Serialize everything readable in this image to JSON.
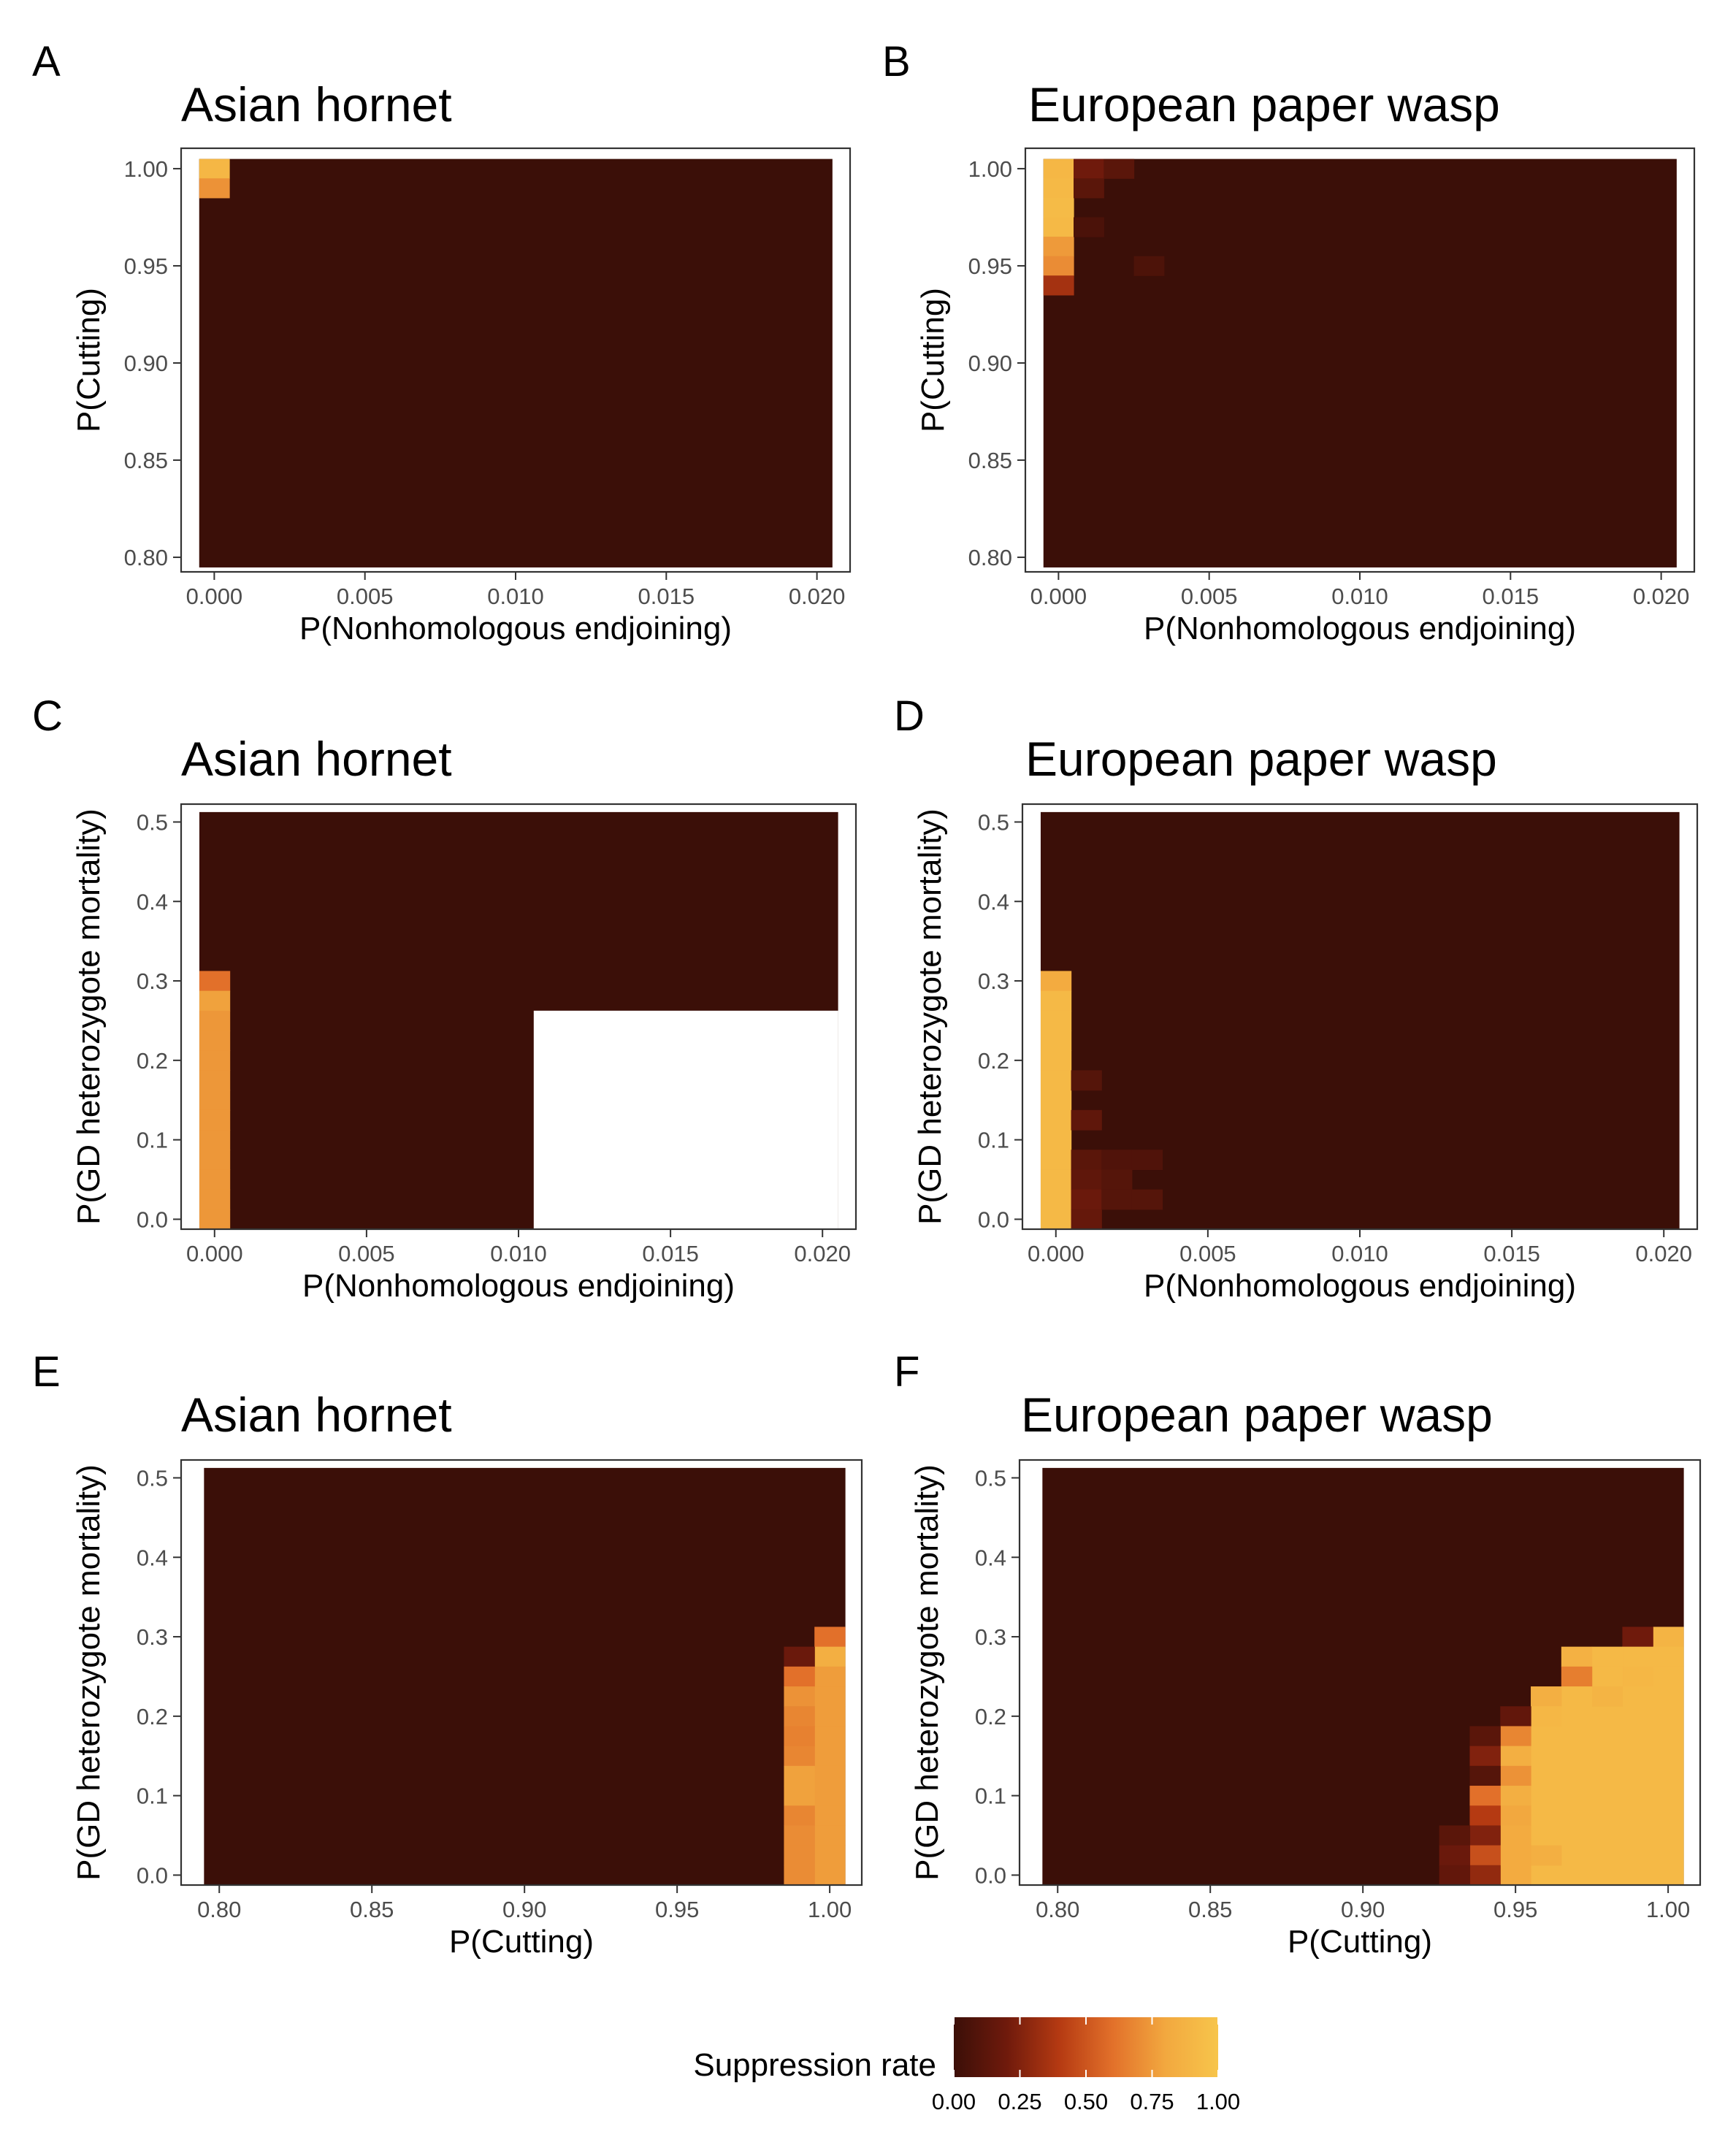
{
  "colors": {
    "scale": [
      "#3b0f08",
      "#6f1a0c",
      "#b53a12",
      "#e2702a",
      "#f2a83f",
      "#f7c54b"
    ],
    "frame": "#333333",
    "tick": "#4d4d4d"
  },
  "legend": {
    "title": "Suppression rate",
    "ticks": [
      "0.00",
      "0.25",
      "0.50",
      "0.75",
      "1.00"
    ]
  },
  "chart_data": [
    {
      "panel": "A",
      "title": "Asian hornet",
      "type": "heatmap",
      "xlabel": "P(Nonhomologous endjoining)",
      "ylabel": "P(Cutting)",
      "xlim": [
        -0.0011,
        0.0211
      ],
      "ylim": [
        0.7925,
        1.0105
      ],
      "xticks": [
        0,
        0.005,
        0.01,
        0.015,
        0.02
      ],
      "xtick_labels": [
        "0.000",
        "0.005",
        "0.010",
        "0.015",
        "0.020"
      ],
      "yticks": [
        0.8,
        0.85,
        0.9,
        0.95,
        1.0
      ],
      "ytick_labels": [
        "0.80",
        "0.85",
        "0.90",
        "0.95",
        "1.00"
      ],
      "x_step": 0.001,
      "y_step": 0.01,
      "x_range": [
        0,
        0.02
      ],
      "y_range": [
        0.8,
        1.0
      ],
      "background_value": 0.0,
      "cells": [
        {
          "x": 0,
          "y": 1.0,
          "value": 0.9
        },
        {
          "x": 0,
          "y": 0.99,
          "value": 0.72
        }
      ]
    },
    {
      "panel": "B",
      "title": "European paper wasp",
      "type": "heatmap",
      "xlabel": "P(Nonhomologous endjoining)",
      "ylabel": "P(Cutting)",
      "xlim": [
        -0.0011,
        0.0211
      ],
      "ylim": [
        0.7925,
        1.0105
      ],
      "xticks": [
        0,
        0.005,
        0.01,
        0.015,
        0.02
      ],
      "xtick_labels": [
        "0.000",
        "0.005",
        "0.010",
        "0.015",
        "0.020"
      ],
      "yticks": [
        0.8,
        0.85,
        0.9,
        0.95,
        1.0
      ],
      "ytick_labels": [
        "0.80",
        "0.85",
        "0.90",
        "0.95",
        "1.00"
      ],
      "x_step": 0.001,
      "y_step": 0.01,
      "x_range": [
        0,
        0.02
      ],
      "y_range": [
        0.8,
        1.0
      ],
      "background_value": 0.0,
      "cells": [
        {
          "x": 0,
          "y": 1.0,
          "value": 0.9
        },
        {
          "x": 0,
          "y": 0.99,
          "value": 0.92
        },
        {
          "x": 0,
          "y": 0.98,
          "value": 0.93
        },
        {
          "x": 0,
          "y": 0.97,
          "value": 0.92
        },
        {
          "x": 0,
          "y": 0.96,
          "value": 0.75
        },
        {
          "x": 0,
          "y": 0.95,
          "value": 0.7
        },
        {
          "x": 0,
          "y": 0.94,
          "value": 0.35
        },
        {
          "x": 0.001,
          "y": 1.0,
          "value": 0.2
        },
        {
          "x": 0.002,
          "y": 1.0,
          "value": 0.12
        },
        {
          "x": 0.001,
          "y": 0.99,
          "value": 0.12
        },
        {
          "x": 0.001,
          "y": 0.97,
          "value": 0.06
        },
        {
          "x": 0.003,
          "y": 0.95,
          "value": 0.07
        }
      ]
    },
    {
      "panel": "C",
      "title": "Asian hornet",
      "type": "heatmap",
      "xlabel": "P(Nonhomologous endjoining)",
      "ylabel": "P(GD heterozygote mortality)",
      "xlim": [
        -0.0011,
        0.0211
      ],
      "ylim": [
        -0.0125,
        0.5225
      ],
      "xticks": [
        0,
        0.005,
        0.01,
        0.015,
        0.02
      ],
      "xtick_labels": [
        "0.000",
        "0.005",
        "0.010",
        "0.015",
        "0.020"
      ],
      "yticks": [
        0,
        0.1,
        0.2,
        0.3,
        0.4,
        0.5
      ],
      "ytick_labels": [
        "0.0",
        "0.1",
        "0.2",
        "0.3",
        "0.4",
        "0.5"
      ],
      "x_step": 0.001,
      "y_step": 0.025,
      "x_range": [
        0,
        0.02
      ],
      "y_range": [
        0,
        0.5
      ],
      "background_value": 0.0,
      "missing_region": {
        "x_from": 0.011,
        "x_to": 0.02,
        "y_from": 0,
        "y_to": 0.25
      },
      "cells": [
        {
          "x": 0,
          "y": 0.3,
          "value": 0.6
        },
        {
          "x": 0,
          "y": 0.275,
          "value": 0.78
        },
        {
          "x": 0,
          "y": 0.25,
          "value": 0.74
        },
        {
          "x": 0,
          "y": 0.225,
          "value": 0.74
        },
        {
          "x": 0,
          "y": 0.2,
          "value": 0.74
        },
        {
          "x": 0,
          "y": 0.175,
          "value": 0.74
        },
        {
          "x": 0,
          "y": 0.15,
          "value": 0.74
        },
        {
          "x": 0,
          "y": 0.125,
          "value": 0.74
        },
        {
          "x": 0,
          "y": 0.1,
          "value": 0.74
        },
        {
          "x": 0,
          "y": 0.075,
          "value": 0.74
        },
        {
          "x": 0,
          "y": 0.05,
          "value": 0.74
        },
        {
          "x": 0,
          "y": 0.025,
          "value": 0.74
        },
        {
          "x": 0,
          "y": 0.0,
          "value": 0.74
        }
      ]
    },
    {
      "panel": "D",
      "title": "European paper wasp",
      "type": "heatmap",
      "xlabel": "P(Nonhomologous endjoining)",
      "ylabel": "P(GD heterozygote mortality)",
      "xlim": [
        -0.0011,
        0.0211
      ],
      "ylim": [
        -0.0125,
        0.5225
      ],
      "xticks": [
        0,
        0.005,
        0.01,
        0.015,
        0.02
      ],
      "xtick_labels": [
        "0.000",
        "0.005",
        "0.010",
        "0.015",
        "0.020"
      ],
      "yticks": [
        0,
        0.1,
        0.2,
        0.3,
        0.4,
        0.5
      ],
      "ytick_labels": [
        "0.0",
        "0.1",
        "0.2",
        "0.3",
        "0.4",
        "0.5"
      ],
      "x_step": 0.001,
      "y_step": 0.025,
      "x_range": [
        0,
        0.02
      ],
      "y_range": [
        0,
        0.5
      ],
      "background_value": 0.0,
      "cells": [
        {
          "x": 0,
          "y": 0.3,
          "value": 0.82
        },
        {
          "x": 0,
          "y": 0.275,
          "value": 0.92
        },
        {
          "x": 0,
          "y": 0.25,
          "value": 0.92
        },
        {
          "x": 0,
          "y": 0.225,
          "value": 0.92
        },
        {
          "x": 0,
          "y": 0.2,
          "value": 0.92
        },
        {
          "x": 0,
          "y": 0.175,
          "value": 0.92
        },
        {
          "x": 0,
          "y": 0.15,
          "value": 0.92
        },
        {
          "x": 0,
          "y": 0.125,
          "value": 0.92
        },
        {
          "x": 0,
          "y": 0.1,
          "value": 0.92
        },
        {
          "x": 0,
          "y": 0.075,
          "value": 0.92
        },
        {
          "x": 0,
          "y": 0.05,
          "value": 0.92
        },
        {
          "x": 0,
          "y": 0.025,
          "value": 0.92
        },
        {
          "x": 0,
          "y": 0.0,
          "value": 0.92
        },
        {
          "x": 0.001,
          "y": 0.175,
          "value": 0.1
        },
        {
          "x": 0.001,
          "y": 0.125,
          "value": 0.14
        },
        {
          "x": 0.001,
          "y": 0.075,
          "value": 0.12
        },
        {
          "x": 0.001,
          "y": 0.05,
          "value": 0.14
        },
        {
          "x": 0.001,
          "y": 0.025,
          "value": 0.18
        },
        {
          "x": 0.001,
          "y": 0.0,
          "value": 0.16
        },
        {
          "x": 0.002,
          "y": 0.075,
          "value": 0.08
        },
        {
          "x": 0.002,
          "y": 0.05,
          "value": 0.1
        },
        {
          "x": 0.002,
          "y": 0.025,
          "value": 0.1
        },
        {
          "x": 0.003,
          "y": 0.075,
          "value": 0.08
        },
        {
          "x": 0.003,
          "y": 0.025,
          "value": 0.1
        }
      ]
    },
    {
      "panel": "E",
      "title": "Asian hornet",
      "type": "heatmap",
      "xlabel": "P(Cutting)",
      "ylabel": "P(GD heterozygote mortality)",
      "xlim": [
        0.7875,
        1.0105
      ],
      "ylim": [
        -0.0125,
        0.5225
      ],
      "xticks": [
        0.8,
        0.85,
        0.9,
        0.95,
        1.0
      ],
      "xtick_labels": [
        "0.80",
        "0.85",
        "0.90",
        "0.95",
        "1.00"
      ],
      "yticks": [
        0,
        0.1,
        0.2,
        0.3,
        0.4,
        0.5
      ],
      "ytick_labels": [
        "0.0",
        "0.1",
        "0.2",
        "0.3",
        "0.4",
        "0.5"
      ],
      "x_step": 0.01,
      "y_step": 0.025,
      "x_range": [
        0.8,
        1.0
      ],
      "y_range": [
        0,
        0.5
      ],
      "background_value": 0.0,
      "cells": [
        {
          "x": 1.0,
          "y": 0.3,
          "value": 0.6
        },
        {
          "x": 1.0,
          "y": 0.275,
          "value": 0.85
        },
        {
          "x": 1.0,
          "y": 0.25,
          "value": 0.76
        },
        {
          "x": 1.0,
          "y": 0.225,
          "value": 0.76
        },
        {
          "x": 1.0,
          "y": 0.2,
          "value": 0.76
        },
        {
          "x": 1.0,
          "y": 0.175,
          "value": 0.76
        },
        {
          "x": 1.0,
          "y": 0.15,
          "value": 0.76
        },
        {
          "x": 1.0,
          "y": 0.125,
          "value": 0.76
        },
        {
          "x": 1.0,
          "y": 0.1,
          "value": 0.76
        },
        {
          "x": 1.0,
          "y": 0.075,
          "value": 0.76
        },
        {
          "x": 1.0,
          "y": 0.05,
          "value": 0.76
        },
        {
          "x": 1.0,
          "y": 0.025,
          "value": 0.76
        },
        {
          "x": 1.0,
          "y": 0.0,
          "value": 0.76
        },
        {
          "x": 0.99,
          "y": 0.275,
          "value": 0.18
        },
        {
          "x": 0.99,
          "y": 0.25,
          "value": 0.6
        },
        {
          "x": 0.99,
          "y": 0.225,
          "value": 0.72
        },
        {
          "x": 0.99,
          "y": 0.2,
          "value": 0.68
        },
        {
          "x": 0.99,
          "y": 0.175,
          "value": 0.66
        },
        {
          "x": 0.99,
          "y": 0.15,
          "value": 0.68
        },
        {
          "x": 0.99,
          "y": 0.125,
          "value": 0.78
        },
        {
          "x": 0.99,
          "y": 0.1,
          "value": 0.78
        },
        {
          "x": 0.99,
          "y": 0.075,
          "value": 0.68
        },
        {
          "x": 0.99,
          "y": 0.05,
          "value": 0.7
        },
        {
          "x": 0.99,
          "y": 0.025,
          "value": 0.7
        },
        {
          "x": 0.99,
          "y": 0.0,
          "value": 0.7
        }
      ]
    },
    {
      "panel": "F",
      "title": "European paper wasp",
      "type": "heatmap",
      "xlabel": "P(Cutting)",
      "ylabel": "P(GD heterozygote mortality)",
      "xlim": [
        0.7875,
        1.0105
      ],
      "ylim": [
        -0.0125,
        0.5225
      ],
      "xticks": [
        0.8,
        0.85,
        0.9,
        0.95,
        1.0
      ],
      "xtick_labels": [
        "0.80",
        "0.85",
        "0.90",
        "0.95",
        "1.00"
      ],
      "yticks": [
        0,
        0.1,
        0.2,
        0.3,
        0.4,
        0.5
      ],
      "ytick_labels": [
        "0.0",
        "0.1",
        "0.2",
        "0.3",
        "0.4",
        "0.5"
      ],
      "x_step": 0.01,
      "y_step": 0.025,
      "x_range": [
        0.8,
        1.0
      ],
      "y_range": [
        0,
        0.5
      ],
      "background_value": 0.0,
      "region_fill": {
        "x_from": 0.96,
        "x_to": 1.0,
        "y_from": 0,
        "y_to": 0.2,
        "value": 0.92
      },
      "cells": [
        {
          "x": 1.0,
          "y": 0.3,
          "value": 0.88
        },
        {
          "x": 0.99,
          "y": 0.3,
          "value": 0.2
        },
        {
          "x": 1.0,
          "y": 0.275,
          "value": 0.92
        },
        {
          "x": 0.99,
          "y": 0.275,
          "value": 0.92
        },
        {
          "x": 0.98,
          "y": 0.275,
          "value": 0.92
        },
        {
          "x": 0.97,
          "y": 0.275,
          "value": 0.86
        },
        {
          "x": 1.0,
          "y": 0.25,
          "value": 0.92
        },
        {
          "x": 0.99,
          "y": 0.25,
          "value": 0.9
        },
        {
          "x": 0.98,
          "y": 0.25,
          "value": 0.92
        },
        {
          "x": 0.97,
          "y": 0.25,
          "value": 0.65
        },
        {
          "x": 1.0,
          "y": 0.225,
          "value": 0.92
        },
        {
          "x": 0.99,
          "y": 0.225,
          "value": 0.92
        },
        {
          "x": 0.98,
          "y": 0.225,
          "value": 0.88
        },
        {
          "x": 0.97,
          "y": 0.225,
          "value": 0.92
        },
        {
          "x": 0.96,
          "y": 0.225,
          "value": 0.85
        },
        {
          "x": 0.96,
          "y": 0.2,
          "value": 0.9
        },
        {
          "x": 0.95,
          "y": 0.2,
          "value": 0.15
        },
        {
          "x": 0.95,
          "y": 0.175,
          "value": 0.68
        },
        {
          "x": 0.94,
          "y": 0.175,
          "value": 0.12
        },
        {
          "x": 0.95,
          "y": 0.15,
          "value": 0.85
        },
        {
          "x": 0.94,
          "y": 0.15,
          "value": 0.25
        },
        {
          "x": 0.95,
          "y": 0.125,
          "value": 0.72
        },
        {
          "x": 0.94,
          "y": 0.125,
          "value": 0.1
        },
        {
          "x": 0.95,
          "y": 0.1,
          "value": 0.85
        },
        {
          "x": 0.94,
          "y": 0.1,
          "value": 0.6
        },
        {
          "x": 0.95,
          "y": 0.075,
          "value": 0.8
        },
        {
          "x": 0.94,
          "y": 0.075,
          "value": 0.4
        },
        {
          "x": 0.95,
          "y": 0.05,
          "value": 0.82
        },
        {
          "x": 0.94,
          "y": 0.05,
          "value": 0.25
        },
        {
          "x": 0.93,
          "y": 0.05,
          "value": 0.12
        },
        {
          "x": 0.96,
          "y": 0.025,
          "value": 0.85
        },
        {
          "x": 0.95,
          "y": 0.025,
          "value": 0.82
        },
        {
          "x": 0.94,
          "y": 0.025,
          "value": 0.48
        },
        {
          "x": 0.93,
          "y": 0.025,
          "value": 0.18
        },
        {
          "x": 0.95,
          "y": 0.0,
          "value": 0.82
        },
        {
          "x": 0.94,
          "y": 0.0,
          "value": 0.3
        },
        {
          "x": 0.93,
          "y": 0.0,
          "value": 0.15
        }
      ]
    }
  ]
}
